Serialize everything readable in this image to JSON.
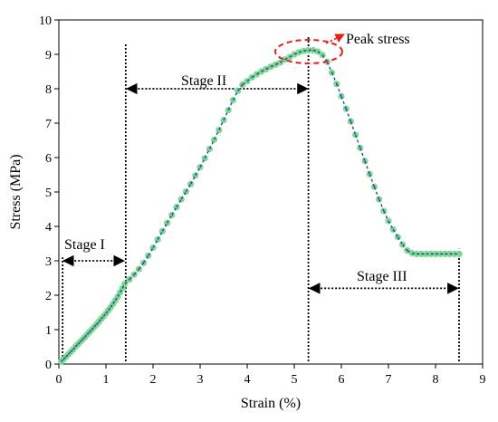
{
  "chart_data": {
    "type": "scatter",
    "xlabel": "Strain (%)",
    "ylabel": "Stress (MPa)",
    "xlim": [
      0,
      9
    ],
    "ylim": [
      0,
      10
    ],
    "xticks": [
      "0",
      "1",
      "2",
      "3",
      "4",
      "5",
      "6",
      "7",
      "8",
      "9"
    ],
    "yticks": [
      "0",
      "1",
      "2",
      "3",
      "4",
      "5",
      "6",
      "7",
      "8",
      "9",
      "10"
    ],
    "grid": false,
    "colors": {
      "points": "#7fd98a",
      "fit_line": "#1e3fc8",
      "peak_ellipse": "#e0201b",
      "guides": "#000000"
    },
    "series": [
      {
        "x": [
          0.05,
          0.1,
          0.15,
          0.2,
          0.25,
          0.3,
          0.35,
          0.4,
          0.45,
          0.5,
          0.55,
          0.6,
          0.65,
          0.7,
          0.75,
          0.8,
          0.85,
          0.9,
          0.95,
          1.0,
          1.05,
          1.1,
          1.15,
          1.2,
          1.25,
          1.3,
          1.35,
          1.4,
          1.5,
          1.6,
          1.7,
          1.8,
          1.9,
          2.0,
          2.1,
          2.2,
          2.3,
          2.4,
          2.5,
          2.6,
          2.7,
          2.8,
          2.9,
          3.0,
          3.1,
          3.2,
          3.3,
          3.4,
          3.5,
          3.6,
          3.7,
          3.8,
          3.9,
          4.0,
          4.1,
          4.2,
          4.3,
          4.4,
          4.5,
          4.6,
          4.7,
          4.8,
          4.9,
          5.0,
          5.1,
          5.2,
          5.3,
          5.4,
          5.5,
          5.6,
          5.7,
          5.8,
          5.9,
          6.0,
          6.1,
          6.2,
          6.3,
          6.4,
          6.5,
          6.6,
          6.7,
          6.8,
          6.9,
          7.0,
          7.1,
          7.2,
          7.3,
          7.4,
          7.5,
          7.6,
          7.7,
          7.8,
          7.9,
          8.0,
          8.1,
          8.2,
          8.3,
          8.4,
          8.5
        ],
        "y": [
          0.07,
          0.14,
          0.21,
          0.28,
          0.35,
          0.42,
          0.5,
          0.57,
          0.64,
          0.71,
          0.78,
          0.86,
          0.93,
          1.0,
          1.08,
          1.15,
          1.23,
          1.31,
          1.39,
          1.47,
          1.56,
          1.65,
          1.75,
          1.85,
          1.96,
          2.08,
          2.2,
          2.33,
          2.46,
          2.6,
          2.76,
          2.94,
          3.15,
          3.38,
          3.62,
          3.86,
          4.1,
          4.33,
          4.56,
          4.79,
          5.01,
          5.23,
          5.48,
          5.72,
          5.98,
          6.25,
          6.52,
          6.8,
          7.09,
          7.38,
          7.67,
          7.94,
          8.12,
          8.22,
          8.33,
          8.42,
          8.5,
          8.57,
          8.64,
          8.7,
          8.76,
          8.85,
          8.92,
          9.0,
          9.06,
          9.1,
          9.12,
          9.12,
          9.08,
          8.98,
          8.78,
          8.47,
          8.14,
          7.78,
          7.42,
          7.05,
          6.66,
          6.28,
          5.9,
          5.52,
          5.15,
          4.79,
          4.45,
          4.16,
          3.91,
          3.69,
          3.47,
          3.3,
          3.22,
          3.2,
          3.2,
          3.2,
          3.2,
          3.2,
          3.2,
          3.2,
          3.2,
          3.2,
          3.2
        ]
      }
    ],
    "annotations": {
      "peak": "Peak stress",
      "stage1": "Stage I",
      "stage2": "Stage II",
      "stage3": "Stage III"
    }
  }
}
